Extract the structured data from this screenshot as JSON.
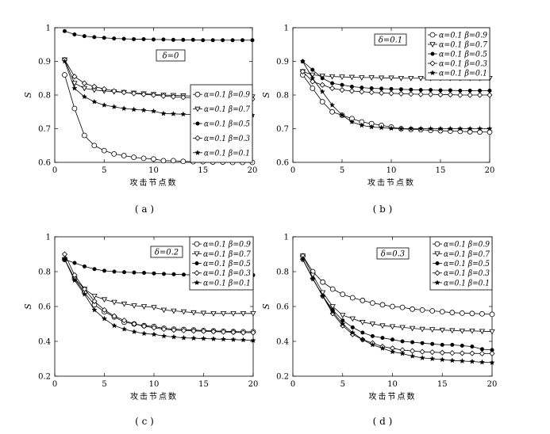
{
  "chart_data": [
    {
      "type": "line",
      "caption": "( a )",
      "annotation": "δ=0",
      "xlabel": "攻击节点数",
      "ylabel": "S",
      "xlim": [
        0,
        20
      ],
      "ylim": [
        0.6,
        1.0
      ],
      "xticks": [
        "0",
        "5",
        "10",
        "15",
        "20"
      ],
      "yticks": [
        "0.6",
        "0.7",
        "0.8",
        "0.9",
        "1"
      ],
      "legend_position": "right-middle",
      "x": [
        1,
        2,
        3,
        4,
        5,
        6,
        7,
        8,
        9,
        10,
        11,
        12,
        13,
        14,
        15,
        16,
        17,
        18,
        19,
        20
      ],
      "series": [
        {
          "name": "α=0.1 β=0.9",
          "marker": "circle-open",
          "values": [
            0.86,
            0.76,
            0.68,
            0.65,
            0.635,
            0.625,
            0.62,
            0.615,
            0.612,
            0.61,
            0.605,
            0.605,
            0.603,
            0.602,
            0.602,
            0.601,
            0.601,
            0.6,
            0.6,
            0.6
          ]
        },
        {
          "name": "α=0.1 β=0.7",
          "marker": "triangle-open",
          "values": [
            0.905,
            0.835,
            0.82,
            0.815,
            0.812,
            0.81,
            0.808,
            0.806,
            0.804,
            0.802,
            0.8,
            0.799,
            0.798,
            0.797,
            0.796,
            0.796,
            0.795,
            0.795,
            0.795,
            0.795
          ]
        },
        {
          "name": "α=0.1 β=0.5",
          "marker": "dot-filled",
          "values": [
            0.99,
            0.98,
            0.975,
            0.972,
            0.97,
            0.968,
            0.967,
            0.966,
            0.966,
            0.965,
            0.965,
            0.964,
            0.964,
            0.964,
            0.963,
            0.963,
            0.963,
            0.963,
            0.963,
            0.963
          ]
        },
        {
          "name": "α=0.1 β=0.3",
          "marker": "diamond-open",
          "values": [
            0.905,
            0.855,
            0.835,
            0.825,
            0.818,
            0.812,
            0.808,
            0.805,
            0.802,
            0.8,
            0.797,
            0.795,
            0.793,
            0.792,
            0.79,
            0.789,
            0.789,
            0.788,
            0.788,
            0.788
          ]
        },
        {
          "name": "α=0.1 β=0.1",
          "marker": "star",
          "values": [
            0.9,
            0.82,
            0.795,
            0.78,
            0.77,
            0.765,
            0.76,
            0.757,
            0.755,
            0.752,
            0.745,
            0.744,
            0.743,
            0.742,
            0.742,
            0.741,
            0.741,
            0.74,
            0.74,
            0.74
          ]
        }
      ]
    },
    {
      "type": "line",
      "caption": "( b )",
      "annotation": "δ=0.1",
      "xlabel": "攻击节点数",
      "ylabel": "S",
      "xlim": [
        0,
        20
      ],
      "ylim": [
        0.6,
        1.0
      ],
      "xticks": [
        "0",
        "5",
        "10",
        "15",
        "20"
      ],
      "yticks": [
        "0.6",
        "0.7",
        "0.8",
        "0.9",
        "1"
      ],
      "legend_position": "top-right",
      "x": [
        1,
        2,
        3,
        4,
        5,
        6,
        7,
        8,
        9,
        10,
        11,
        12,
        13,
        14,
        15,
        16,
        17,
        18,
        19,
        20
      ],
      "series": [
        {
          "name": "α=0.1 β=0.9",
          "marker": "circle-open",
          "values": [
            0.86,
            0.82,
            0.78,
            0.75,
            0.74,
            0.73,
            0.72,
            0.715,
            0.71,
            0.705,
            0.7,
            0.698,
            0.697,
            0.695,
            0.694,
            0.693,
            0.692,
            0.691,
            0.69,
            0.69
          ]
        },
        {
          "name": "α=0.1 β=0.7",
          "marker": "triangle-open",
          "values": [
            0.87,
            0.86,
            0.857,
            0.855,
            0.854,
            0.853,
            0.852,
            0.852,
            0.851,
            0.851,
            0.85,
            0.85,
            0.85,
            0.85,
            0.85,
            0.85,
            0.85,
            0.85,
            0.85,
            0.85
          ]
        },
        {
          "name": "α=0.1 β=0.5",
          "marker": "dot-filled",
          "values": [
            0.9,
            0.875,
            0.85,
            0.835,
            0.83,
            0.825,
            0.822,
            0.82,
            0.819,
            0.818,
            0.817,
            0.816,
            0.815,
            0.815,
            0.814,
            0.814,
            0.813,
            0.813,
            0.813,
            0.813
          ]
        },
        {
          "name": "α=0.1 β=0.3",
          "marker": "diamond-open",
          "values": [
            0.87,
            0.84,
            0.83,
            0.82,
            0.815,
            0.812,
            0.81,
            0.808,
            0.806,
            0.805,
            0.804,
            0.803,
            0.802,
            0.802,
            0.801,
            0.801,
            0.8,
            0.8,
            0.8,
            0.8
          ]
        },
        {
          "name": "α=0.1 β=0.1",
          "marker": "star",
          "values": [
            0.9,
            0.85,
            0.81,
            0.77,
            0.74,
            0.72,
            0.71,
            0.705,
            0.703,
            0.701,
            0.7,
            0.7,
            0.7,
            0.7,
            0.7,
            0.7,
            0.7,
            0.7,
            0.7,
            0.7
          ]
        }
      ]
    },
    {
      "type": "line",
      "caption": "( c )",
      "annotation": "δ=0.2",
      "xlabel": "攻击节点数",
      "ylabel": "S",
      "xlim": [
        0,
        20
      ],
      "ylim": [
        0.2,
        1.0
      ],
      "xticks": [
        "0",
        "5",
        "10",
        "15",
        "20"
      ],
      "yticks": [
        "0.2",
        "0.4",
        "0.6",
        "0.8",
        "1"
      ],
      "legend_position": "top-right",
      "x": [
        1,
        2,
        3,
        4,
        5,
        6,
        7,
        8,
        9,
        10,
        11,
        12,
        13,
        14,
        15,
        16,
        17,
        18,
        19,
        20
      ],
      "series": [
        {
          "name": "α=0.1 β=0.9",
          "marker": "circle-open",
          "values": [
            0.87,
            0.76,
            0.68,
            0.61,
            0.57,
            0.54,
            0.51,
            0.5,
            0.49,
            0.485,
            0.475,
            0.47,
            0.468,
            0.465,
            0.462,
            0.46,
            0.458,
            0.456,
            0.455,
            0.455
          ]
        },
        {
          "name": "α=0.1 β=0.7",
          "marker": "triangle-open",
          "values": [
            0.87,
            0.76,
            0.7,
            0.66,
            0.64,
            0.625,
            0.615,
            0.605,
            0.6,
            0.595,
            0.58,
            0.575,
            0.57,
            0.565,
            0.562,
            0.56,
            0.56,
            0.56,
            0.56,
            0.56
          ]
        },
        {
          "name": "α=0.1 β=0.5",
          "marker": "dot-filled",
          "values": [
            0.87,
            0.85,
            0.83,
            0.815,
            0.805,
            0.8,
            0.797,
            0.795,
            0.793,
            0.79,
            0.787,
            0.785,
            0.783,
            0.781,
            0.78,
            0.78,
            0.78,
            0.78,
            0.78,
            0.78
          ]
        },
        {
          "name": "α=0.1 β=0.3",
          "marker": "diamond-open",
          "values": [
            0.9,
            0.78,
            0.7,
            0.63,
            0.58,
            0.545,
            0.52,
            0.5,
            0.487,
            0.478,
            0.47,
            0.465,
            0.462,
            0.46,
            0.458,
            0.456,
            0.454,
            0.452,
            0.45,
            0.45
          ]
        },
        {
          "name": "α=0.1 β=0.1",
          "marker": "star",
          "values": [
            0.87,
            0.75,
            0.67,
            0.58,
            0.53,
            0.49,
            0.47,
            0.455,
            0.445,
            0.44,
            0.43,
            0.425,
            0.42,
            0.418,
            0.416,
            0.414,
            0.412,
            0.41,
            0.408,
            0.405
          ]
        }
      ]
    },
    {
      "type": "line",
      "caption": "( d )",
      "annotation": "δ=0.3",
      "xlabel": "攻击节点数",
      "ylabel": "S",
      "xlim": [
        0,
        20
      ],
      "ylim": [
        0.2,
        1.0
      ],
      "xticks": [
        "0",
        "5",
        "10",
        "15",
        "20"
      ],
      "yticks": [
        "0.2",
        "0.4",
        "0.6",
        "0.8",
        "1"
      ],
      "legend_position": "top-right",
      "x": [
        1,
        2,
        3,
        4,
        5,
        6,
        7,
        8,
        9,
        10,
        11,
        12,
        13,
        14,
        15,
        16,
        17,
        18,
        19,
        20
      ],
      "series": [
        {
          "name": "α=0.1 β=0.9",
          "marker": "circle-open",
          "values": [
            0.89,
            0.8,
            0.74,
            0.7,
            0.67,
            0.65,
            0.635,
            0.62,
            0.61,
            0.6,
            0.595,
            0.585,
            0.58,
            0.575,
            0.57,
            0.565,
            0.562,
            0.56,
            0.558,
            0.555
          ]
        },
        {
          "name": "α=0.1 β=0.7",
          "marker": "triangle-open",
          "values": [
            0.89,
            0.78,
            0.68,
            0.6,
            0.55,
            0.53,
            0.51,
            0.5,
            0.49,
            0.485,
            0.48,
            0.475,
            0.47,
            0.468,
            0.465,
            0.462,
            0.46,
            0.46,
            0.458,
            0.456
          ]
        },
        {
          "name": "α=0.1 β=0.5",
          "marker": "dot-filled",
          "values": [
            0.87,
            0.76,
            0.66,
            0.58,
            0.52,
            0.48,
            0.45,
            0.43,
            0.42,
            0.41,
            0.4,
            0.395,
            0.39,
            0.385,
            0.38,
            0.38,
            0.375,
            0.37,
            0.355,
            0.35
          ]
        },
        {
          "name": "α=0.1 β=0.3",
          "marker": "diamond-open",
          "values": [
            0.87,
            0.76,
            0.66,
            0.56,
            0.49,
            0.44,
            0.41,
            0.39,
            0.37,
            0.36,
            0.35,
            0.345,
            0.34,
            0.338,
            0.335,
            0.333,
            0.332,
            0.331,
            0.33,
            0.33
          ]
        },
        {
          "name": "α=0.1 β=0.1",
          "marker": "star",
          "values": [
            0.87,
            0.76,
            0.66,
            0.57,
            0.5,
            0.45,
            0.41,
            0.38,
            0.36,
            0.34,
            0.33,
            0.315,
            0.305,
            0.3,
            0.295,
            0.29,
            0.287,
            0.284,
            0.28,
            0.278
          ]
        }
      ]
    }
  ]
}
